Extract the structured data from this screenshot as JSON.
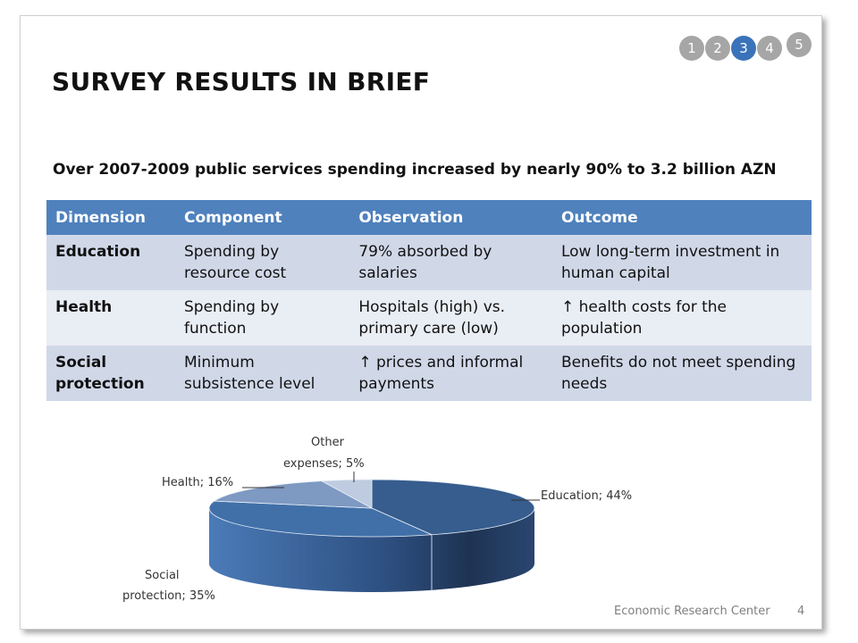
{
  "slide": {
    "title": "SURVEY RESULTS IN BRIEF",
    "subtitle": "Over 2007-2009 public services spending increased by nearly 90% to 3.2 billion AZN",
    "nav": {
      "items": [
        "1",
        "2",
        "3",
        "4",
        "5"
      ],
      "active_index": 2
    },
    "table": {
      "headers": [
        "Dimension",
        "Component",
        "Observation",
        "Outcome"
      ],
      "rows": [
        [
          "Education",
          "Spending by resource cost",
          "79% absorbed by salaries",
          "Low long-term investment in human capital"
        ],
        [
          "Health",
          "Spending by function",
          "Hospitals  (high) vs. primary care (low)",
          "↑ health costs for the population"
        ],
        [
          "Social protection",
          "Minimum subsistence level",
          "↑ prices and informal payments",
          "Benefits do not meet spending needs"
        ]
      ]
    },
    "footer": {
      "org": "Economic Research Center",
      "page": "4"
    }
  },
  "chart_data": {
    "type": "pie",
    "title": "",
    "categories": [
      "Education",
      "Social protection",
      "Health",
      "Other expenses"
    ],
    "values": [
      44,
      35,
      16,
      5
    ],
    "labels": [
      "Education; 44%",
      "Social protection; 35%",
      "Health; 16%",
      "Other expenses; 5%"
    ],
    "colors": [
      "#365d8e",
      "#4170a8",
      "#7e99c2",
      "#bfcbe0"
    ],
    "style": "3d"
  }
}
